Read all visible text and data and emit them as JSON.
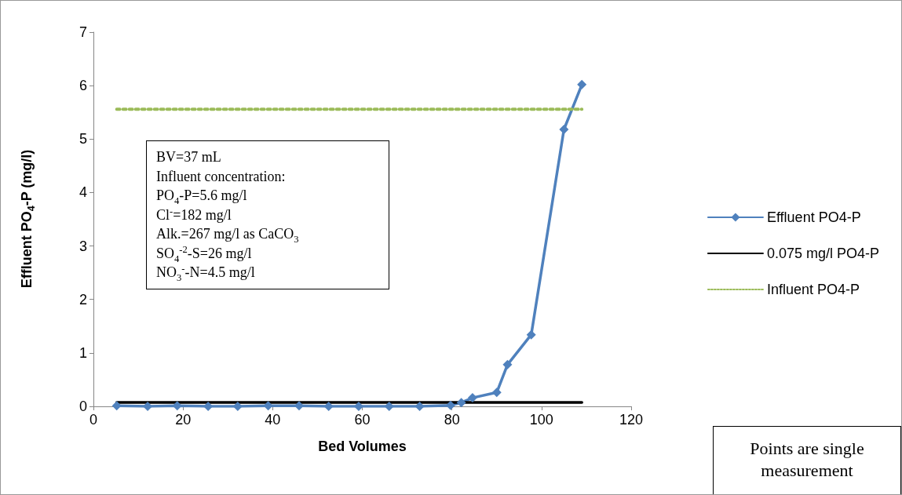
{
  "chart_data": {
    "type": "line",
    "xlabel": "Bed Volumes",
    "ylabel": "Effluent PO$_{4}$-P (mg/l)",
    "xlim": [
      0,
      120
    ],
    "xticks": [
      0,
      20,
      40,
      60,
      80,
      100,
      120
    ],
    "ylim": [
      0,
      7
    ],
    "yticks": [
      0,
      1,
      2,
      3,
      4,
      5,
      6,
      7
    ],
    "grid": false,
    "legend": "right",
    "series": [
      {
        "name": "Effluent PO4-P",
        "color": "#4f81bd",
        "marker": "diamond",
        "line_style": "solid",
        "x": [
          5.2,
          12.1,
          18.7,
          25.6,
          32.2,
          39,
          45.9,
          52.5,
          59.2,
          66,
          72.8,
          79.7,
          82.1,
          84.6,
          90,
          92.4,
          97.7,
          105,
          109
        ],
        "values": [
          0.01,
          0,
          0.01,
          0,
          0,
          0.01,
          0.01,
          0,
          0,
          0,
          0,
          0.02,
          0.07,
          0.16,
          0.26,
          0.78,
          1.34,
          5.18,
          6.02
        ]
      },
      {
        "name": "0.075 mg/l PO4-P",
        "color": "#000000",
        "marker": "none",
        "line_style": "solid",
        "x": [
          5.2,
          109
        ],
        "values": [
          0.075,
          0.075
        ]
      },
      {
        "name": "Influent PO4-P",
        "color": "#9bbb59",
        "marker": "none",
        "line_style": "dotted",
        "x": [
          5.2,
          109
        ],
        "values": [
          5.56,
          5.56
        ]
      }
    ],
    "annotations": [
      "BV=37 mL\nInfluent concentration:\nPO$_{4}$-P=5.6 mg/l\nCl$^{-}$=182 mg/l\nAlk.=267 mg/l as CaCO$_{3}$\nSO$_{4}$$^{-2}$-S=26 mg/l\nNO$_{3}$$^{-}$-N=4.5 mg/l",
      "Points are single measurement"
    ]
  }
}
